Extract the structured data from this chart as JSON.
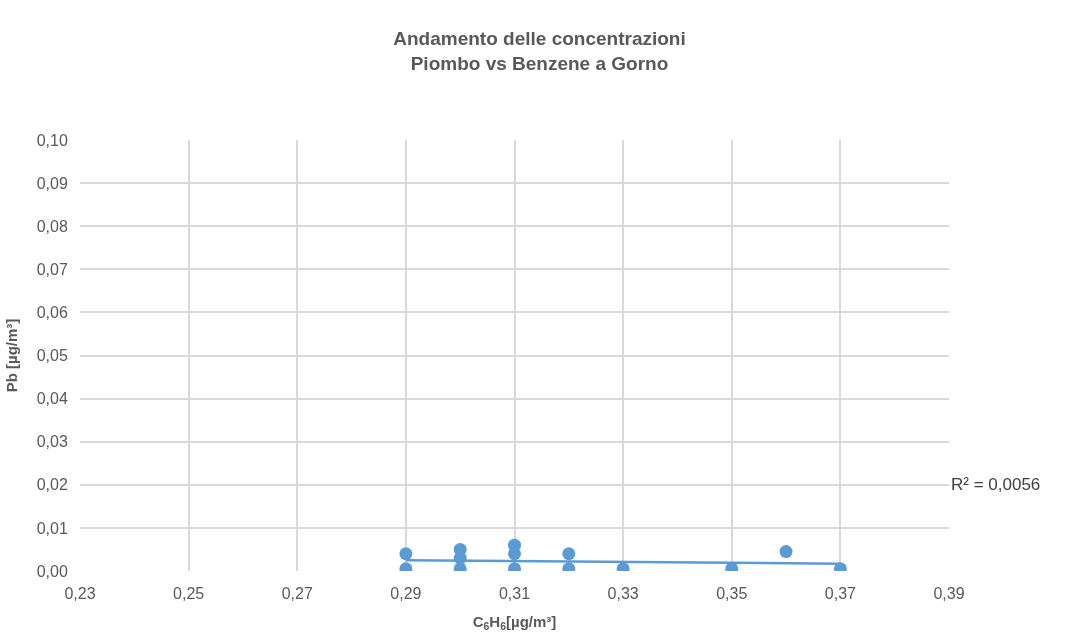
{
  "chart_data": {
    "type": "scatter",
    "title": "Andamento delle concentrazioni\nPiombo vs Benzene a Gorno",
    "xlabel": "C$_{6}$H$_{6}$[µg/m³]",
    "ylabel": "Pb [µg/m³]",
    "series": [
      {
        "color": "#5b9bd5",
        "marker": "circle",
        "x": [
          0.29,
          0.29,
          0.3,
          0.3,
          0.3,
          0.31,
          0.31,
          0.31,
          0.32,
          0.32,
          0.33,
          0.35,
          0.36,
          0.37
        ],
        "values": [
          0.004,
          0.0005,
          0.005,
          0.003,
          0.0005,
          0.006,
          0.004,
          0.0005,
          0.004,
          0.0005,
          0.0005,
          0.0005,
          0.0045,
          0.0005
        ]
      },
      {
        "type": "line",
        "color": "#5b9bd5",
        "x": [
          0.29,
          0.37
        ],
        "values": [
          0.0025,
          0.0017
        ]
      }
    ],
    "annotations": [
      "R² = 0,0056"
    ],
    "xlim": [
      0.23,
      0.39
    ],
    "xticks": [
      {
        "value": 0.23,
        "label": "0,23"
      },
      {
        "value": 0.25,
        "label": "0,25"
      },
      {
        "value": 0.27,
        "label": "0,27"
      },
      {
        "value": 0.29,
        "label": "0,29"
      },
      {
        "value": 0.31,
        "label": "0,31"
      },
      {
        "value": 0.33,
        "label": "0,33"
      },
      {
        "value": 0.35,
        "label": "0,35"
      },
      {
        "value": 0.37,
        "label": "0,37"
      },
      {
        "value": 0.39,
        "label": "0,39"
      }
    ],
    "ylim": [
      0,
      0.1
    ],
    "yticks": [
      {
        "value": 0,
        "label": "0,00"
      },
      {
        "value": 0.01,
        "label": "0,01"
      },
      {
        "value": 0.02,
        "label": "0,02"
      },
      {
        "value": 0.03,
        "label": "0,03"
      },
      {
        "value": 0.04,
        "label": "0,04"
      },
      {
        "value": 0.05,
        "label": "0,05"
      },
      {
        "value": 0.06,
        "label": "0,06"
      },
      {
        "value": 0.07,
        "label": "0,07"
      },
      {
        "value": 0.08,
        "label": "0,08"
      },
      {
        "value": 0.09,
        "label": "0,09"
      },
      {
        "value": 0.1,
        "label": "0,10"
      }
    ],
    "grid": true,
    "legend": false
  }
}
